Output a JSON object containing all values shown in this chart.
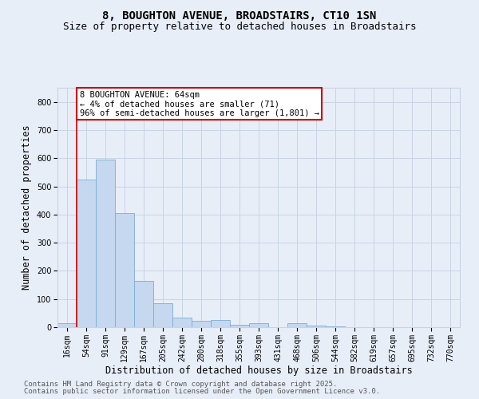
{
  "title_line1": "8, BOUGHTON AVENUE, BROADSTAIRS, CT10 1SN",
  "title_line2": "Size of property relative to detached houses in Broadstairs",
  "xlabel": "Distribution of detached houses by size in Broadstairs",
  "ylabel": "Number of detached properties",
  "bar_labels": [
    "16sqm",
    "54sqm",
    "91sqm",
    "129sqm",
    "167sqm",
    "205sqm",
    "242sqm",
    "280sqm",
    "318sqm",
    "355sqm",
    "393sqm",
    "431sqm",
    "468sqm",
    "506sqm",
    "544sqm",
    "582sqm",
    "619sqm",
    "657sqm",
    "695sqm",
    "732sqm",
    "770sqm"
  ],
  "bar_values": [
    15,
    525,
    595,
    405,
    165,
    85,
    35,
    22,
    25,
    8,
    13,
    0,
    14,
    5,
    2,
    0,
    0,
    0,
    0,
    0,
    0
  ],
  "bar_color": "#c5d8ef",
  "bar_edge_color": "#7aadd4",
  "vline_color": "#cc0000",
  "vline_x_index": 1,
  "annotation_title": "8 BOUGHTON AVENUE: 64sqm",
  "annotation_line2": "← 4% of detached houses are smaller (71)",
  "annotation_line3": "96% of semi-detached houses are larger (1,801) →",
  "annotation_box_facecolor": "#ffffff",
  "annotation_box_edgecolor": "#cc0000",
  "ylim": [
    0,
    850
  ],
  "yticks": [
    0,
    100,
    200,
    300,
    400,
    500,
    600,
    700,
    800
  ],
  "grid_color": "#c8d4e4",
  "background_color": "#e8eef8",
  "footer_line1": "Contains HM Land Registry data © Crown copyright and database right 2025.",
  "footer_line2": "Contains public sector information licensed under the Open Government Licence v3.0.",
  "title_fontsize": 10,
  "subtitle_fontsize": 9,
  "axis_label_fontsize": 8.5,
  "tick_fontsize": 7,
  "annotation_fontsize": 7.5,
  "footer_fontsize": 6.5
}
